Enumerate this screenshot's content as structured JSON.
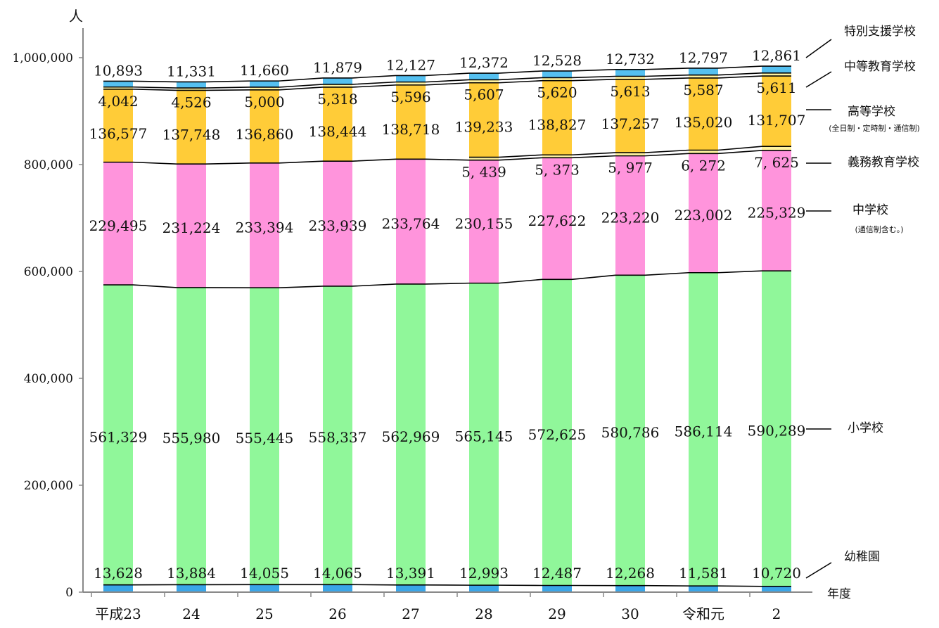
{
  "chart_data": {
    "type": "bar",
    "stacked": true,
    "y_unit_label": "人",
    "x_unit_label": "年度",
    "ylim": [
      0,
      1000000
    ],
    "y_ticks": [
      "0",
      "200,000",
      "400,000",
      "600,000",
      "800,000",
      "1,000,000"
    ],
    "categories": [
      "平成23",
      "24",
      "25",
      "26",
      "27",
      "28",
      "29",
      "30",
      "令和元",
      "2"
    ],
    "series": [
      {
        "name": "幼稚園",
        "color": "#3aa6e8",
        "values": [
          13628,
          13884,
          14055,
          14065,
          13391,
          12993,
          12487,
          12268,
          11581,
          10720
        ],
        "labels": [
          "13,628",
          "13,884",
          "14,055",
          "14,065",
          "13,391",
          "12,993",
          "12,487",
          "12,268",
          "11,581",
          "10,720"
        ]
      },
      {
        "name": "小学校",
        "color": "#90f79a",
        "values": [
          561329,
          555980,
          555445,
          558337,
          562969,
          565145,
          572625,
          580786,
          586114,
          590289
        ],
        "labels": [
          "561,329",
          "555,980",
          "555,445",
          "558,337",
          "562,969",
          "565,145",
          "572,625",
          "580,786",
          "586,114",
          "590,289"
        ]
      },
      {
        "name": "中学校",
        "note": "(通信制含む。)",
        "color": "#ff94dc",
        "values": [
          229495,
          231224,
          233394,
          233939,
          233764,
          230155,
          227622,
          223220,
          223002,
          225329
        ],
        "labels": [
          "229,495",
          "231,224",
          "233,394",
          "233,939",
          "233,764",
          "230,155",
          "227,622",
          "223,220",
          "223,002",
          "225,329"
        ]
      },
      {
        "name": "義務教育学校",
        "color": "#fff2a0",
        "values": [
          0,
          0,
          0,
          0,
          0,
          5439,
          5373,
          5977,
          6272,
          7625
        ],
        "labels": [
          "",
          "",
          "",
          "",
          "",
          "5, 439",
          "5, 373",
          "5, 977",
          "6, 272",
          "7, 625"
        ]
      },
      {
        "name": "高等学校",
        "note": "(全日制・定時制・通信制)",
        "color": "#ffcc38",
        "values": [
          136577,
          137748,
          136860,
          138444,
          138718,
          139233,
          138827,
          137257,
          135020,
          131707
        ],
        "labels": [
          "136,577",
          "137,748",
          "136,860",
          "138,444",
          "138,718",
          "139,233",
          "138,827",
          "137,257",
          "135,020",
          "131,707"
        ]
      },
      {
        "name": "中等教育学校",
        "color": "#fff2a0",
        "values": [
          4042,
          4526,
          5000,
          5318,
          5596,
          5607,
          5620,
          5613,
          5587,
          5611
        ],
        "labels": [
          "4,042",
          "4,526",
          "5,000",
          "5,318",
          "5,596",
          "5,607",
          "5,620",
          "5,613",
          "5,587",
          "5,611"
        ]
      },
      {
        "name": "特別支援学校",
        "color": "#55c0f0",
        "values": [
          10893,
          11331,
          11660,
          11879,
          12127,
          12372,
          12528,
          12732,
          12797,
          12861
        ],
        "labels": [
          "10,893",
          "11,331",
          "11,660",
          "11,879",
          "12,127",
          "12,372",
          "12,528",
          "12,732",
          "12,797",
          "12,861"
        ]
      }
    ]
  }
}
